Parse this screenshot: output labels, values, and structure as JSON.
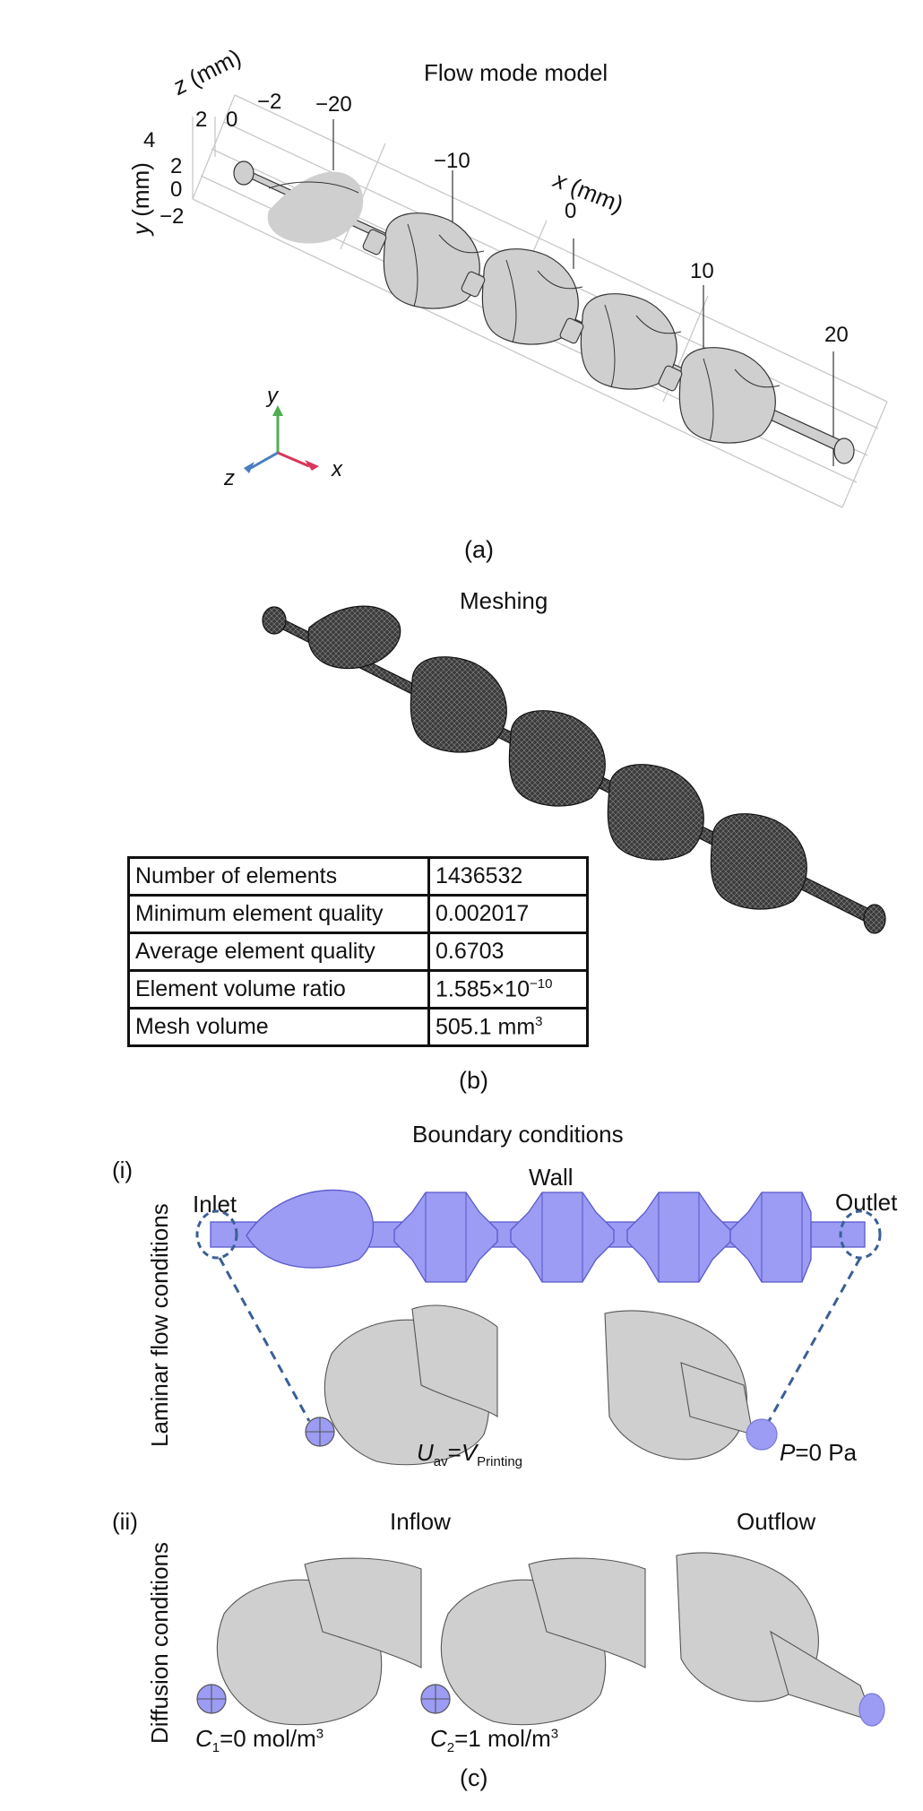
{
  "panel_a": {
    "title": "Flow mode model",
    "label": "(a)",
    "axes": {
      "z_label": "z",
      "z_unit": " (mm)",
      "y_label": "y",
      "y_unit": " (mm)",
      "x_label": "x",
      "x_unit": " (mm)",
      "z_ticks": [
        "4",
        "2",
        "0",
        "−2"
      ],
      "y_ticks": [
        "2",
        "0",
        "−2"
      ],
      "x_ticks": [
        "−20",
        "−10",
        "0",
        "10",
        "20"
      ]
    },
    "triad": {
      "y": "y",
      "z": "z",
      "x": "x"
    }
  },
  "panel_b": {
    "title": "Meshing",
    "label": "(b)",
    "table": [
      {
        "name": "Number of elements",
        "value": "1436532"
      },
      {
        "name": "Minimum element quality",
        "value": "0.002017"
      },
      {
        "name": "Average element quality",
        "value": "0.6703"
      },
      {
        "name": "Element volume ratio",
        "value_base": "1.585×10",
        "value_exp": "−10"
      },
      {
        "name": "Mesh volume",
        "value_base": "505.1 mm",
        "value_exp": "3"
      }
    ]
  },
  "panel_c": {
    "title": "Boundary conditions",
    "label": "(c)",
    "sub_i": {
      "label": "(i)",
      "side_label": "Laminar flow conditions",
      "inlet": "Inlet",
      "wall": "Wall",
      "outlet": "Outlet",
      "uav_main": "U",
      "uav_sub": "av",
      "uav_eq": "=",
      "v_main": "V",
      "v_sub": "Printing",
      "p_main": "P",
      "p_rest": "=0 Pa"
    },
    "sub_ii": {
      "label": "(ii)",
      "side_label": "Diffusion conditions",
      "inflow": "Inflow",
      "outflow": "Outflow",
      "c1_main": "C",
      "c1_sub": "1",
      "c1_rest": "=0 mol/m",
      "c1_sup": "3",
      "c2_main": "C",
      "c2_sub": "2",
      "c2_rest": "=1 mol/m",
      "c2_sup": "3"
    }
  },
  "colors": {
    "geometry_gray": "#cfcfcf",
    "boundary_blue": "#9c9cf4",
    "dashed_blue": "#3a5f96",
    "mesh_dark": "#3a3a3a",
    "triad_y": "#4caf50",
    "triad_x": "#d9365b",
    "triad_z": "#4a7fc1"
  }
}
